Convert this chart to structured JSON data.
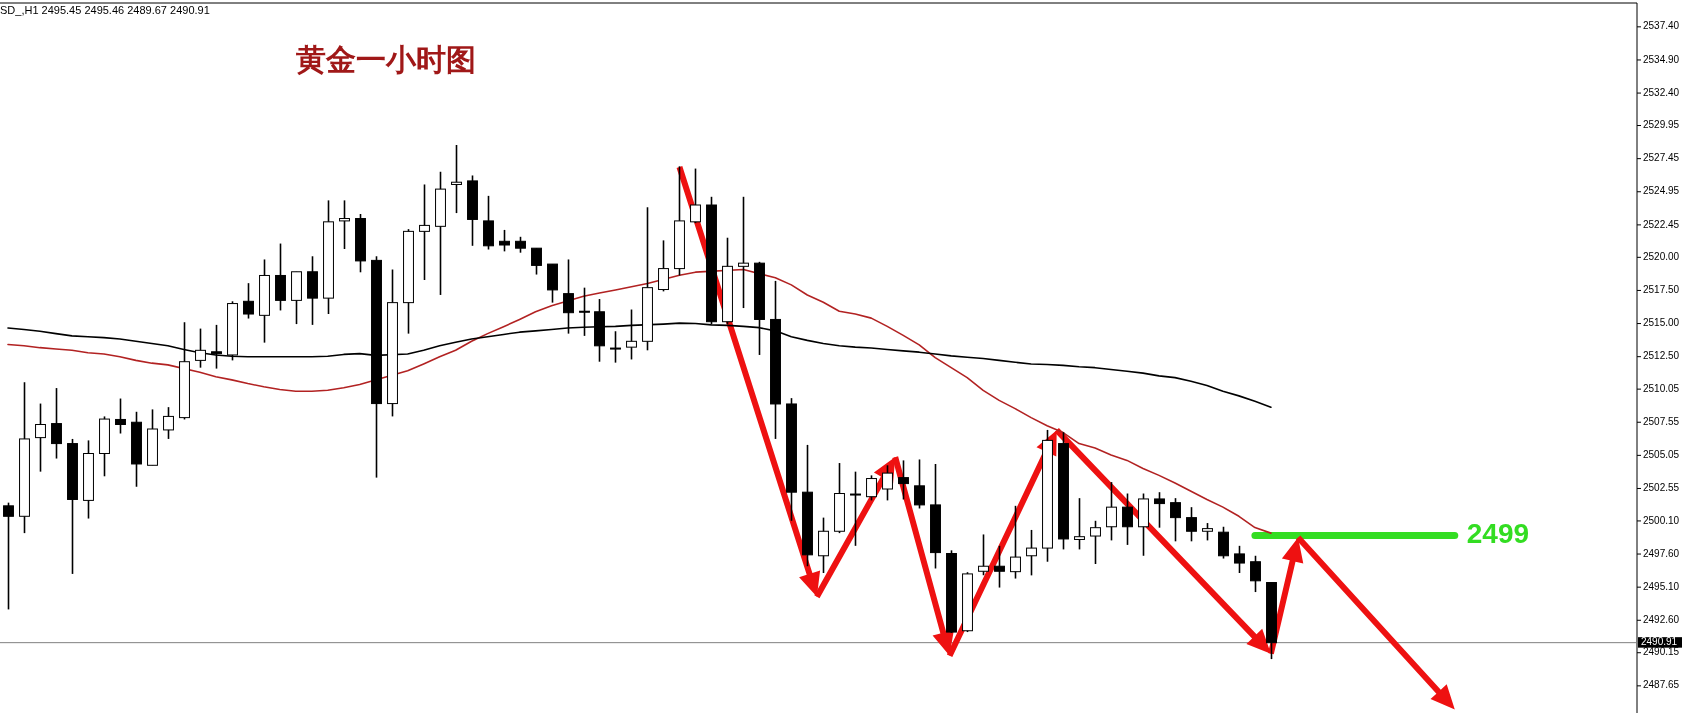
{
  "chart_data": {
    "type": "candlestick",
    "title": "黄金一小时图",
    "annotations": [
      "SD_,H1  2495.45 2495.46 2489.67 2490.91"
    ],
    "categories": [
      null,
      null,
      null,
      null,
      null,
      null,
      null,
      null,
      null,
      null,
      null,
      null,
      null,
      null,
      null,
      null,
      null,
      null,
      null,
      null,
      null,
      null,
      null,
      null,
      null,
      null,
      null,
      null,
      null,
      null,
      null,
      null,
      null,
      null,
      null,
      null,
      null,
      null,
      null,
      null,
      null,
      null,
      null,
      null,
      null,
      null,
      null,
      null,
      null,
      null,
      null,
      null,
      null,
      null,
      null,
      null,
      null,
      null,
      null,
      null,
      null,
      null,
      null,
      null,
      null,
      null,
      null,
      null,
      null,
      null,
      null,
      null,
      null,
      null,
      null,
      null,
      null,
      null,
      null,
      null
    ],
    "ohlc": [
      [
        2501.24,
        2501.48,
        2493.42,
        2500.45
      ],
      [
        2500.45,
        2510.57,
        2499.18,
        2506.29
      ],
      [
        2506.39,
        2508.96,
        2503.82,
        2507.38
      ],
      [
        2507.45,
        2510.13,
        2504.81,
        2505.94
      ],
      [
        2505.94,
        2506.29,
        2496.1,
        2501.72
      ],
      [
        2501.65,
        2506.18,
        2500.28,
        2505.19
      ],
      [
        2505.19,
        2507.99,
        2503.47,
        2507.79
      ],
      [
        2507.76,
        2509.34,
        2506.7,
        2507.38
      ],
      [
        2507.55,
        2508.34,
        2502.68,
        2504.4
      ],
      [
        2504.3,
        2508.52,
        2504.3,
        2507.04
      ],
      [
        2506.97,
        2508.69,
        2506.29,
        2507.99
      ],
      [
        2507.9,
        2515.1,
        2507.76,
        2512.12
      ],
      [
        2512.22,
        2514.62,
        2511.67,
        2512.98
      ],
      [
        2512.87,
        2514.9,
        2511.6,
        2512.73
      ],
      [
        2512.63,
        2516.68,
        2512.22,
        2516.51
      ],
      [
        2516.68,
        2518.05,
        2515.38,
        2515.72
      ],
      [
        2515.62,
        2519.84,
        2513.56,
        2518.63
      ],
      [
        2518.63,
        2521.04,
        2515.99,
        2516.75
      ],
      [
        2516.75,
        2518.91,
        2514.96,
        2518.91
      ],
      [
        2518.91,
        2520.08,
        2514.9,
        2516.92
      ],
      [
        2516.92,
        2524.3,
        2515.72,
        2522.68
      ],
      [
        2522.75,
        2524.3,
        2520.63,
        2522.93
      ],
      [
        2522.93,
        2523.27,
        2518.87,
        2519.73
      ],
      [
        2519.77,
        2520.08,
        2503.37,
        2508.96
      ],
      [
        2508.96,
        2519.08,
        2507.99,
        2516.58
      ],
      [
        2516.58,
        2522.13,
        2514.24,
        2521.96
      ],
      [
        2521.96,
        2525.5,
        2518.29,
        2522.41
      ],
      [
        2522.34,
        2526.46,
        2517.16,
        2525.15
      ],
      [
        2525.5,
        2528.48,
        2523.34,
        2525.67
      ],
      [
        2525.77,
        2526.18,
        2520.87,
        2522.86
      ],
      [
        2522.75,
        2524.64,
        2520.59,
        2520.87
      ],
      [
        2521.21,
        2522.07,
        2520.45,
        2520.93
      ],
      [
        2521.21,
        2521.55,
        2520.35,
        2520.69
      ],
      [
        2520.69,
        2520.69,
        2518.7,
        2519.39
      ],
      [
        2519.49,
        2519.49,
        2516.58,
        2517.54
      ],
      [
        2517.26,
        2519.84,
        2514.24,
        2515.82
      ],
      [
        2515.93,
        2517.71,
        2514.07,
        2515.86
      ],
      [
        2515.89,
        2516.85,
        2512.12,
        2513.32
      ],
      [
        2513.15,
        2514.42,
        2512.05,
        2513.1
      ],
      [
        2513.22,
        2516.06,
        2512.29,
        2513.66
      ],
      [
        2513.66,
        2523.78,
        2512.98,
        2517.71
      ],
      [
        2517.57,
        2521.28,
        2517.43,
        2519.15
      ],
      [
        2519.15,
        2526.87,
        2518.63,
        2522.75
      ],
      [
        2522.68,
        2526.7,
        2522.58,
        2523.95
      ],
      [
        2523.95,
        2524.57,
        2514.96,
        2515.14
      ],
      [
        2515.14,
        2521.48,
        2514.96,
        2519.32
      ],
      [
        2519.32,
        2524.57,
        2516.17,
        2519.56
      ],
      [
        2519.56,
        2519.66,
        2512.63,
        2515.31
      ],
      [
        2515.31,
        2518.22,
        2506.29,
        2508.93
      ],
      [
        2508.93,
        2509.37,
        2500.11,
        2502.27
      ],
      [
        2502.27,
        2505.84,
        2496.68,
        2497.54
      ],
      [
        2497.47,
        2500.35,
        2496.17,
        2499.32
      ],
      [
        2499.32,
        2504.47,
        2499.18,
        2502.17
      ],
      [
        2502.13,
        2503.82,
        2498.22,
        2502.1
      ],
      [
        2501.93,
        2503.54,
        2501.65,
        2503.3
      ],
      [
        2502.51,
        2504.3,
        2501.65,
        2503.71
      ],
      [
        2503.37,
        2504.67,
        2501.72,
        2502.92
      ],
      [
        2502.75,
        2504.74,
        2501.04,
        2501.31
      ],
      [
        2501.31,
        2504.4,
        2496.51,
        2497.71
      ],
      [
        2497.64,
        2497.88,
        2491.64,
        2491.71
      ],
      [
        2491.81,
        2496.23,
        2491.71,
        2496.1
      ],
      [
        2496.3,
        2499.08,
        2496.0,
        2496.68
      ],
      [
        2496.68,
        2498.22,
        2495.07,
        2496.3
      ],
      [
        2496.27,
        2501.24,
        2495.75,
        2497.37
      ],
      [
        2497.47,
        2499.42,
        2495.99,
        2498.05
      ],
      [
        2498.05,
        2506.97,
        2497.02,
        2506.18
      ],
      [
        2505.94,
        2506.8,
        2497.95,
        2498.74
      ],
      [
        2498.7,
        2501.82,
        2497.95,
        2498.91
      ],
      [
        2498.96,
        2500.11,
        2496.85,
        2499.59
      ],
      [
        2499.66,
        2503.03,
        2498.63,
        2501.14
      ],
      [
        2501.14,
        2502.17,
        2498.29,
        2499.66
      ],
      [
        2499.66,
        2502.17,
        2497.47,
        2501.76
      ],
      [
        2501.76,
        2502.27,
        2499.59,
        2501.41
      ],
      [
        2501.48,
        2501.82,
        2498.56,
        2500.35
      ],
      [
        2500.35,
        2501.14,
        2498.56,
        2499.32
      ],
      [
        2499.32,
        2499.94,
        2498.63,
        2499.52
      ],
      [
        2499.25,
        2499.66,
        2497.26,
        2497.47
      ],
      [
        2497.61,
        2498.22,
        2496.17,
        2496.92
      ],
      [
        2497.02,
        2497.47,
        2494.73,
        2495.58
      ],
      [
        2495.45,
        2495.46,
        2489.67,
        2490.91
      ]
    ],
    "series": [
      {
        "type": "line",
        "color": "#b22222",
        "values": [
          2513.42,
          2513.32,
          2513.18,
          2513.08,
          2512.98,
          2512.8,
          2512.7,
          2512.49,
          2512.22,
          2512.01,
          2511.88,
          null,
          2511.33,
          2510.99,
          2510.75,
          2510.47,
          2510.23,
          2510.02,
          2509.89,
          2509.89,
          2509.96,
          2510.16,
          2510.4,
          null,
          null,
          2511.43,
          2511.95,
          2512.49,
          2512.98,
          2513.66,
          2514.24,
          2514.76,
          2515.31,
          2515.89,
          2516.34,
          null,
          2517.06,
          2517.3,
          2517.54,
          2517.78,
          2518.02,
          null,
          2518.64,
          2518.88,
          null,
          null,
          2519.08,
          null,
          2518.46,
          2517.92,
          2517.16,
          2516.61,
          2515.93,
          2515.72,
          2515.41,
          2514.79,
          2514.11,
          2513.39,
          2512.43,
          2511.67,
          2510.92,
          2509.96,
          2509.2,
          2508.58,
          2507.9,
          2507.28,
          2506.77,
          2505.94,
          2505.6,
          2505.08,
          2504.67,
          2504.06,
          2503.54,
          2502.96,
          2502.34,
          2501.72,
          2501.14,
          2500.45,
          2499.6,
          2499.18
        ]
      },
      {
        "type": "line",
        "color": "#000000",
        "values": [
          2514.66,
          2514.55,
          2514.42,
          2514.24,
          2514.07,
          2514.0,
          2513.94,
          2513.83,
          2513.66,
          2513.49,
          2513.32,
          2513.04,
          2512.8,
          2512.63,
          2512.53,
          2512.49,
          2512.49,
          2512.49,
          2512.49,
          2512.49,
          2512.53,
          2512.67,
          2512.73,
          2512.6,
          null,
          2512.7,
          2512.98,
          2513.32,
          2513.59,
          2513.83,
          2514.0,
          2514.18,
          2514.35,
          2514.45,
          2514.55,
          2514.66,
          2514.72,
          2514.76,
          2514.79,
          2514.86,
          null,
          2514.96,
          2515.03,
          2515.0,
          2514.9,
          2514.86,
          2514.79,
          2514.69,
          2514.45,
          2514.0,
          2513.73,
          2513.49,
          2513.32,
          2513.22,
          2513.15,
          2513.04,
          2512.94,
          2512.84,
          2512.7,
          2512.56,
          2512.46,
          2512.36,
          2512.22,
          2512.08,
          2511.95,
          2511.91,
          2511.84,
          2511.74,
          2511.67,
          2511.53,
          2511.4,
          2511.26,
          2511.05,
          2510.92,
          2510.64,
          2510.33,
          2509.89,
          2509.54,
          2509.13,
          2508.69
        ]
      }
    ],
    "ylim": [
      2485.6,
      2539.2
    ],
    "yticks": [
      {
        "value": 2537.4,
        "label": "2537.40"
      },
      {
        "value": 2534.9,
        "label": "2534.90"
      },
      {
        "value": 2532.4,
        "label": "2532.40"
      },
      {
        "value": 2529.95,
        "label": "2529.95"
      },
      {
        "value": 2527.45,
        "label": "2527.45"
      },
      {
        "value": 2524.95,
        "label": "2524.95"
      },
      {
        "value": 2522.45,
        "label": "2522.45"
      },
      {
        "value": 2520,
        "label": "2520.00"
      },
      {
        "value": 2517.5,
        "label": "2517.50"
      },
      {
        "value": 2515,
        "label": "2515.00"
      },
      {
        "value": 2512.5,
        "label": "2512.50"
      },
      {
        "value": 2510.05,
        "label": "2510.05"
      },
      {
        "value": 2507.55,
        "label": "2507.55"
      },
      {
        "value": 2505.05,
        "label": "2505.05"
      },
      {
        "value": 2502.55,
        "label": "2502.55"
      },
      {
        "value": 2500.1,
        "label": "2500.10"
      },
      {
        "value": 2497.6,
        "label": "2497.60"
      },
      {
        "value": 2495.1,
        "label": "2495.10"
      },
      {
        "value": 2492.6,
        "label": "2492.60"
      },
      {
        "value": 2490.15,
        "label": "2490.15"
      },
      {
        "value": 2487.65,
        "label": "2487.65"
      }
    ],
    "ref_lines": [
      {
        "axis": "y",
        "value": 2490.91,
        "label": "2490.91",
        "color": "#808080"
      },
      {
        "axis": "y",
        "value": 2499,
        "label": "2499",
        "color": "#33dd22"
      }
    ],
    "tick_labels": "y"
  }
}
